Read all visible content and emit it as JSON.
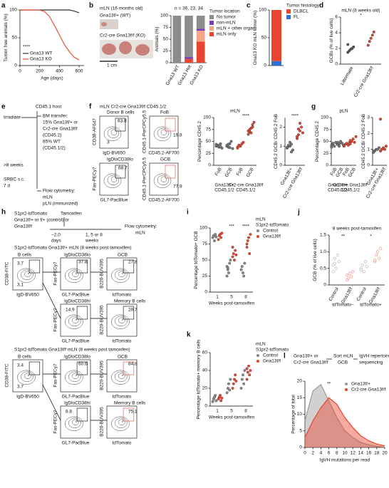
{
  "figure": {
    "letters": [
      "a",
      "b",
      "c",
      "d",
      "e",
      "f",
      "g",
      "h",
      "i",
      "j",
      "k",
      "l"
    ],
    "b_photo": [
      "mLN (16 months old)",
      "Gna13f/+ (WT)",
      "Cr2-cre Gna13f/f (KO)",
      "1 cm"
    ],
    "e": [
      "CD45.1 host",
      "Irradiate",
      "BM transfer:",
      "15% Gna13f/+ or",
      "Cr2-cre Gna13f/f",
      "(CD45.2)",
      "85% WT",
      "(CD45.1/2)",
      ">8 weeks",
      "SRBC s.c.",
      "7 d",
      "Flow cytometry:",
      "mLN",
      "pLN (immunized)"
    ],
    "f_flow": [
      "mLN Cr2-cre Gna13f/f CD45.1/2",
      "Donor B cells",
      "CD38-AF647",
      "IgD-BV650",
      "83.8",
      "3",
      "FoB",
      "CD45.1-PerCPCy5.5",
      "CD45.2-AF700",
      "19.8",
      "IgDloCD38lo",
      "Fas-PECy7",
      "GL7-PacBlue",
      "68.7",
      "GCB",
      "77.9"
    ],
    "h": [
      "S1pr2-tdTomato",
      "Gna13f/+ or f/+ (control) or",
      "Gna13f/f",
      "Tamoxifen",
      "−2.0",
      "days",
      "1, 5 or 8",
      "weeks",
      "Flow cytometry:",
      "mLN",
      "S1pr2-tdTomato Gna13f/+ mLN (8 weeks post tamoxifen)",
      "B cells",
      "CD38-FITC",
      "IgD-BV650",
      "3.7",
      "3.1",
      "IgDloCD38lo",
      "Fas-PECy7",
      "GL7-PacBlue",
      "37.8",
      "GCB",
      "B220-BUV395",
      "tdTomato",
      "27.8",
      "IgDloCD38hi",
      "14.9",
      "Memory B cells",
      "20.7",
      "S1pr2-tdTomato Gna13f/f mLN (8 weeks post tamoxifen)",
      "3.4",
      "3.7",
      "60.6",
      "84.8",
      "8.8",
      "75.1"
    ],
    "l_flow": [
      "Gna13f/+ or",
      "Cr2-cre Gna13f/f",
      "Sort mLN",
      "GCB",
      "IgVH repertoire",
      "sequencing"
    ]
  },
  "chart_data": [
    {
      "type": "line",
      "ylabel": "Tumor free animals (%)",
      "xlabel": "Age (days)",
      "x": [
        0,
        100,
        200,
        250,
        300,
        350,
        400,
        450,
        500,
        550,
        600
      ],
      "xlim": [
        0,
        650
      ],
      "xticks": [
        0,
        200,
        400,
        600
      ],
      "ylim": [
        0,
        100
      ],
      "yticks": [
        0,
        50,
        100
      ],
      "annotation": "****",
      "series": [
        {
          "name": "Gna13 WT",
          "color": "#333333",
          "values": [
            100,
            100,
            100,
            100,
            100,
            100,
            100,
            100,
            100,
            98,
            95
          ]
        },
        {
          "name": "Gna13 KO",
          "color": "#e8542e",
          "values": [
            100,
            100,
            100,
            97,
            88,
            72,
            55,
            38,
            25,
            15,
            10
          ]
        }
      ]
    },
    {
      "type": "stacked",
      "note": "n = 36, 23, 34",
      "ylabel": "Animals (%)",
      "legend_title": "Tumor location",
      "categories": [
        "Gna13 WT",
        "Gna13 Het",
        "Gna13 KO"
      ],
      "ylim": [
        0,
        100
      ],
      "yticks": [
        0,
        25,
        50,
        75,
        100
      ],
      "series": [
        {
          "name": "No tumor",
          "color": "#8c8c8c",
          "values": [
            100,
            88,
            28
          ]
        },
        {
          "name": "non-mLN",
          "color": "#7a3db8",
          "values": [
            0,
            4,
            4
          ]
        },
        {
          "name": "mLN + other organ",
          "color": "#f5a489",
          "values": [
            0,
            0,
            23
          ]
        },
        {
          "name": "mLN only",
          "color": "#e8442e",
          "values": [
            0,
            8,
            45
          ]
        }
      ]
    },
    {
      "type": "stacked",
      "ylabel": "Gna13 KO mLN tumor (%)",
      "legend_title": "Tumor histology",
      "categories": [
        null
      ],
      "ylim": [
        0,
        100
      ],
      "yticks": [
        0,
        50,
        100
      ],
      "series": [
        {
          "name": "DLBCL",
          "color": "#e8442e",
          "values": [
            92
          ]
        },
        {
          "name": "FL",
          "color": "#2f6fd6",
          "values": [
            8
          ]
        }
      ]
    },
    {
      "type": "dots",
      "title": "mLN (8 weeks old)",
      "ylabel": "GCBs (% of live cells)",
      "categories": [
        "Littermate",
        "Cr2-cre Gna13f/f"
      ],
      "colors": [
        "#555555",
        "#e8442e"
      ],
      "ylim": [
        0,
        6
      ],
      "yticks": [
        0,
        2,
        4,
        6
      ],
      "annotation": "*",
      "values": [
        [
          1.5,
          1.7,
          1.9,
          2.0,
          2.2,
          2.5
        ],
        [
          2.4,
          2.9,
          3.3,
          3.7,
          4.1
        ]
      ]
    },
    {
      "type": "dots",
      "title": "mLN",
      "ylabel": "Percentage CD45.2",
      "categories": [
        "FoB",
        "GCB",
        "FoB",
        "GCB"
      ],
      "groups": [
        [
          "Gna13f/+",
          "CD45.1/2"
        ],
        [
          "Cr2-cre Gna13f/f",
          "CD45.1/2"
        ]
      ],
      "colors": [
        "#777777",
        "#777777",
        "#e8442e",
        "#e8442e"
      ],
      "ylim": [
        0,
        100
      ],
      "yticks": [
        0,
        25,
        50,
        75,
        100
      ],
      "annotation": "****",
      "values": [
        [
          40,
          42,
          38,
          45,
          36,
          44,
          40,
          41,
          39
        ],
        [
          40,
          38,
          45,
          50,
          35,
          42,
          44,
          37
        ],
        [
          38,
          42,
          40,
          45,
          48,
          36,
          41
        ],
        [
          65,
          70,
          78,
          85,
          90,
          72,
          75,
          68,
          80
        ]
      ]
    },
    {
      "type": "dots",
      "ylabel": "CD45.2 GCB/ CD45.2 FoB",
      "categories": [
        "Gna13f/+",
        "Cr2-cre Gna13f/f"
      ],
      "colors": [
        "#777777",
        "#e8442e"
      ],
      "ylim": [
        0,
        2.5
      ],
      "yticks": [
        0,
        1,
        2
      ],
      "annotation": "****",
      "values": [
        [
          0.9,
          1.0,
          1.0,
          1.1,
          0.8,
          0.95,
          1.05,
          1.2,
          0.7
        ],
        [
          1.4,
          1.6,
          1.8,
          2.0,
          1.7,
          1.5,
          1.9,
          2.2
        ]
      ]
    },
    {
      "type": "dots",
      "title": "pLN",
      "ylabel": "Percentage CD45.2",
      "categories": [
        "FoB",
        "GCB",
        "FoB",
        "GCB"
      ],
      "groups": [
        [
          "Gna13f/+",
          "CD45.1/2"
        ],
        [
          "Cr2-cre Gna13f/f",
          "CD45.1/2"
        ]
      ],
      "colors": [
        "#777777",
        "#777777",
        "#e8442e",
        "#e8442e"
      ],
      "ylim": [
        0,
        100
      ],
      "yticks": [
        0,
        25,
        50,
        75,
        100
      ],
      "values": [
        [
          42,
          45,
          40,
          48,
          44,
          38,
          46
        ],
        [
          44,
          40,
          50,
          46,
          42,
          48,
          45
        ],
        [
          40,
          44,
          46,
          42,
          48
        ],
        [
          45,
          50,
          55,
          48,
          60,
          52
        ]
      ]
    },
    {
      "type": "dots",
      "ylabel": "CD45.2 GCB/ CD45.2 FoB",
      "categories": [
        "Gna13f/+",
        "Cr2-cre Gna13f/f"
      ],
      "colors": [
        "#777777",
        "#e8442e"
      ],
      "ylim": [
        0,
        3
      ],
      "yticks": [
        0,
        1,
        2,
        3
      ],
      "values": [
        [
          0.8,
          0.9,
          1.0,
          1.0,
          1.1,
          0.9
        ],
        [
          0.9,
          1.0,
          1.1,
          1.0,
          1.2,
          2.9
        ]
      ]
    },
    {
      "type": "dots_x",
      "title": "mLN",
      "legend_title": "S1pr2-tdTomato",
      "ylabel": "Percentage tdTomato+ GCB",
      "xlabel": "Weeks post-tamoxifen",
      "x": [
        "1",
        "5",
        "8"
      ],
      "ylim": [
        0,
        100
      ],
      "yticks": [
        0,
        25,
        50,
        75,
        100
      ],
      "annotations": [
        null,
        "***",
        "****"
      ],
      "series": [
        {
          "name": "Control",
          "color": "#888888",
          "values": [
            [
              85,
              88,
              80,
              90,
              86
            ],
            [
              40,
              35,
              30,
              45,
              50,
              25,
              38
            ],
            [
              35,
              40,
              30,
              25,
              45
            ]
          ]
        },
        {
          "name": "Gna13f/f",
          "color": "#e8442e",
          "values": [
            [
              82,
              88,
              90,
              85,
              92
            ],
            [
              55,
              60,
              50,
              65,
              58,
              70
            ],
            [
              75,
              80,
              85,
              60,
              90,
              70
            ]
          ]
        }
      ]
    },
    {
      "type": "dots",
      "title": "8 weeks post-tamoxifen",
      "ylabel": "GCB (% of live cells)",
      "categories": [
        "Control",
        "Gna13f/f",
        "Control",
        "Gna13f/f"
      ],
      "groups": [
        [
          "tdTomato−"
        ],
        [
          "tdTomato+"
        ]
      ],
      "colors": [
        "#888888",
        "#e8442e",
        "#888888",
        "#e8442e"
      ],
      "open": true,
      "ylim": [
        0,
        1.5
      ],
      "yticks": [
        0,
        0.5,
        {
          "value": 1,
          "label": "1.0"
        },
        1.5
      ],
      "annotations": [
        "**",
        "*"
      ],
      "values": [
        [
          0.6,
          0.8,
          0.5,
          0.9,
          0.7,
          0.4,
          0.65
        ],
        [
          0.3,
          0.2,
          0.35,
          0.25,
          0.4,
          0.15
        ],
        [
          0.5,
          0.6,
          0.4,
          0.7,
          0.55,
          0.45
        ],
        [
          0.7,
          0.9,
          1.0,
          0.8,
          1.1,
          0.75
        ]
      ]
    },
    {
      "type": "dots_x",
      "title": "mLN",
      "legend_title": "S1pr2-tdTomato",
      "ylabel": "Percentage tdTomato+ memory B cells",
      "xlabel": "Weeks post-tamoxifen",
      "x": [
        "1",
        "5",
        "8"
      ],
      "ylim": [
        0,
        60
      ],
      "yticks": [
        0,
        20,
        40,
        60
      ],
      "series": [
        {
          "name": "Control",
          "color": "#888888",
          "values": [
            [
              5,
              8,
              10,
              12,
              6
            ],
            [
              15,
              20,
              25,
              18,
              30
            ],
            [
              20,
              30,
              35,
              25,
              40
            ]
          ]
        },
        {
          "name": "Gna13f/f",
          "color": "#e8442e",
          "values": [
            [
              8,
              10,
              12,
              6,
              9
            ],
            [
              20,
              25,
              30,
              35,
              28
            ],
            [
              30,
              38,
              45,
              35,
              40,
              42
            ]
          ]
        }
      ]
    },
    {
      "type": "area",
      "ylabel": "Percentage of total",
      "xlabel": "IgVH mutations per read",
      "annotation": "**",
      "x": [
        0,
        2,
        4,
        6,
        8,
        10,
        12,
        14,
        16,
        18,
        20
      ],
      "xlim": [
        0,
        20
      ],
      "xticks": [
        0,
        2,
        4,
        6,
        8,
        10,
        12,
        14,
        16,
        18,
        20
      ],
      "ylim": [
        0,
        20
      ],
      "yticks": [
        0,
        5,
        10,
        15,
        20
      ],
      "series": [
        {
          "name": "Gna13f/+",
          "color": "#999999",
          "values": [
            8,
            17,
            19,
            14,
            9,
            5,
            3,
            1.5,
            0.8,
            0.3,
            0.1
          ]
        },
        {
          "name": "Cr2-cre Gna13f/f",
          "color": "#e8442e",
          "values": [
            3,
            8,
            12,
            15,
            13,
            9,
            6,
            3.5,
            2,
            1,
            0.5
          ]
        }
      ]
    }
  ]
}
